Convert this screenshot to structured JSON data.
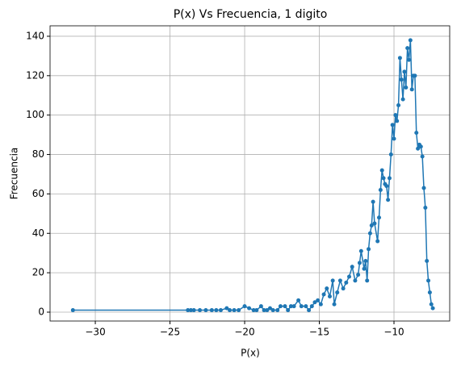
{
  "chart_data": {
    "type": "line",
    "title": "P(x) Vs Frecuencia, 1 digito",
    "xlabel": "P(x)",
    "ylabel": "Frecuencia",
    "color": "#1f77b4",
    "grid": true,
    "markers": true,
    "xlim": [
      -33.03,
      -6.27
    ],
    "ylim": [
      -4.5,
      145.3
    ],
    "xticks": [
      {
        "value": -30,
        "label": "−30"
      },
      {
        "value": -25,
        "label": "−25"
      },
      {
        "value": -20,
        "label": "−20"
      },
      {
        "value": -15,
        "label": "−15"
      },
      {
        "value": -10,
        "label": "−10"
      }
    ],
    "yticks": [
      0,
      20,
      40,
      60,
      80,
      100,
      120,
      140
    ],
    "x": [
      -31.5,
      -23.8,
      -23.6,
      -23.4,
      -23.0,
      -22.6,
      -22.2,
      -21.9,
      -21.6,
      -21.2,
      -21.0,
      -20.7,
      -20.4,
      -20.0,
      -19.7,
      -19.4,
      -19.2,
      -18.9,
      -18.7,
      -18.5,
      -18.3,
      -18.1,
      -17.8,
      -17.6,
      -17.3,
      -17.1,
      -16.9,
      -16.7,
      -16.4,
      -16.2,
      -15.9,
      -15.7,
      -15.5,
      -15.3,
      -15.1,
      -14.9,
      -14.7,
      -14.5,
      -14.3,
      -14.1,
      -14.0,
      -13.8,
      -13.6,
      -13.4,
      -13.2,
      -13.0,
      -12.8,
      -12.6,
      -12.4,
      -12.3,
      -12.2,
      -12.0,
      -11.9,
      -11.8,
      -11.7,
      -11.6,
      -11.5,
      -11.4,
      -11.3,
      -11.1,
      -11.0,
      -10.9,
      -10.8,
      -10.7,
      -10.6,
      -10.5,
      -10.4,
      -10.3,
      -10.2,
      -10.1,
      -10.0,
      -9.9,
      -9.8,
      -9.7,
      -9.6,
      -9.5,
      -9.4,
      -9.3,
      -9.2,
      -9.1,
      -9.0,
      -8.9,
      -8.8,
      -8.7,
      -8.6,
      -8.5,
      -8.4,
      -8.3,
      -8.2,
      -8.1,
      -8.0,
      -7.9,
      -7.8,
      -7.7,
      -7.6,
      -7.5,
      -7.4
    ],
    "values": [
      1,
      1,
      1,
      1,
      1,
      1,
      1,
      1,
      1,
      2,
      1,
      1,
      1,
      3,
      2,
      1,
      1,
      3,
      1,
      1,
      2,
      1,
      1,
      3,
      3,
      1,
      3,
      3,
      6,
      3,
      3,
      1,
      3,
      5,
      6,
      4,
      9,
      12,
      8,
      16,
      4,
      10,
      16,
      12,
      15,
      18,
      23,
      16,
      19,
      25,
      31,
      22,
      26,
      16,
      32,
      40,
      44,
      56,
      45,
      36,
      48,
      62,
      72,
      68,
      65,
      64,
      57,
      68,
      80,
      95,
      88,
      100,
      97,
      105,
      129,
      118,
      108,
      122,
      114,
      134,
      128,
      138,
      113,
      120,
      120,
      91,
      83,
      85,
      84,
      79,
      63,
      53,
      26,
      16,
      10,
      4,
      2
    ]
  }
}
